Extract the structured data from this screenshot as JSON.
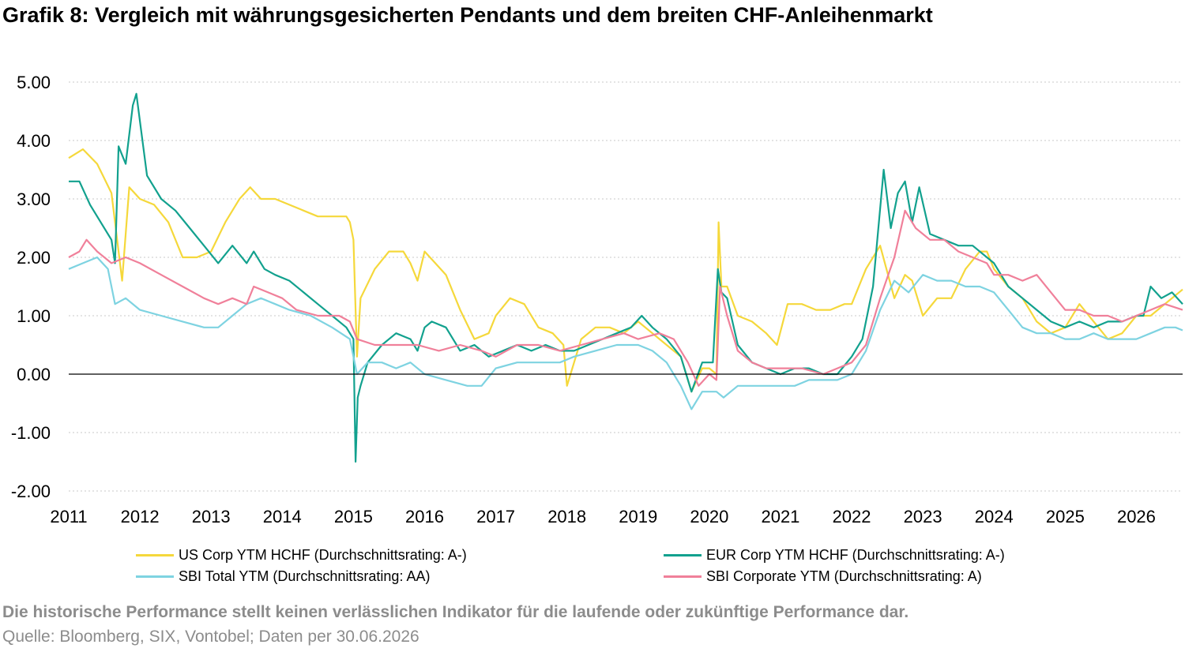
{
  "title": "Grafik 8: Vergleich mit währungsgesicherten Pendants und dem breiten CHF-Anleihenmarkt",
  "footer": {
    "disclaimer": "Die historische Performance stellt keinen verlässlichen Indikator für die laufende oder zukünftige Performance dar.",
    "source": "Quelle: Bloomberg, SIX, Vontobel; Daten per 30.06.2026"
  },
  "chart_data": {
    "type": "line",
    "title": "",
    "xlabel": "",
    "ylabel": "",
    "xlim": [
      2011.0,
      2026.65
    ],
    "ylim": [
      -2.0,
      5.0
    ],
    "x_ticks": [
      "2011",
      "2012",
      "2013",
      "2014",
      "2015",
      "2016",
      "2017",
      "2018",
      "2019",
      "2020",
      "2021",
      "2022",
      "2023",
      "2024",
      "2025",
      "2026"
    ],
    "y_ticks": [
      "5.00",
      "4.00",
      "3.00",
      "2.00",
      "1.00",
      "0.00",
      "-1.00",
      "-2.00"
    ],
    "grid": "horizontal dotted",
    "legend_position": "bottom",
    "series": [
      {
        "name": "US Corp YTM HCHF (Durchschnittsrating: A-)",
        "color": "#F5D83B",
        "x": [
          2011.0,
          2011.2,
          2011.4,
          2011.6,
          2011.75,
          2011.85,
          2012.0,
          2012.2,
          2012.4,
          2012.6,
          2012.8,
          2013.0,
          2013.2,
          2013.4,
          2013.55,
          2013.7,
          2013.9,
          2014.1,
          2014.3,
          2014.5,
          2014.7,
          2014.9,
          2014.95,
          2015.0,
          2015.05,
          2015.1,
          2015.3,
          2015.5,
          2015.7,
          2015.8,
          2015.9,
          2016.0,
          2016.15,
          2016.3,
          2016.5,
          2016.7,
          2016.9,
          2017.0,
          2017.2,
          2017.4,
          2017.6,
          2017.8,
          2017.95,
          2018.0,
          2018.2,
          2018.4,
          2018.6,
          2018.8,
          2019.0,
          2019.2,
          2019.4,
          2019.6,
          2019.75,
          2019.9,
          2020.0,
          2020.1,
          2020.13,
          2020.17,
          2020.25,
          2020.4,
          2020.6,
          2020.8,
          2020.95,
          2021.1,
          2021.3,
          2021.5,
          2021.7,
          2021.9,
          2022.0,
          2022.2,
          2022.4,
          2022.6,
          2022.75,
          2022.85,
          2023.0,
          2023.2,
          2023.4,
          2023.6,
          2023.8,
          2023.9,
          2024.0,
          2024.2,
          2024.4,
          2024.6,
          2024.8,
          2025.0,
          2025.2,
          2025.4,
          2025.6,
          2025.8,
          2026.0,
          2026.2,
          2026.4,
          2026.5,
          2026.65
        ],
        "values": [
          3.7,
          3.85,
          3.6,
          3.1,
          1.6,
          3.2,
          3.0,
          2.9,
          2.6,
          2.0,
          2.0,
          2.1,
          2.6,
          3.0,
          3.2,
          3.0,
          3.0,
          2.9,
          2.8,
          2.7,
          2.7,
          2.7,
          2.6,
          2.3,
          0.3,
          1.3,
          1.8,
          2.1,
          2.1,
          1.9,
          1.6,
          2.1,
          1.9,
          1.7,
          1.1,
          0.6,
          0.7,
          1.0,
          1.3,
          1.2,
          0.8,
          0.7,
          0.5,
          -0.2,
          0.6,
          0.8,
          0.8,
          0.7,
          0.9,
          0.7,
          0.5,
          0.3,
          -0.3,
          0.1,
          0.1,
          0.0,
          2.6,
          1.5,
          1.5,
          1.0,
          0.9,
          0.7,
          0.5,
          1.2,
          1.2,
          1.1,
          1.1,
          1.2,
          1.2,
          1.8,
          2.2,
          1.3,
          1.7,
          1.6,
          1.0,
          1.3,
          1.3,
          1.8,
          2.1,
          2.1,
          1.8,
          1.5,
          1.3,
          0.9,
          0.7,
          0.8,
          1.2,
          0.9,
          0.6,
          0.7,
          1.0,
          1.0,
          1.2,
          1.3,
          1.45
        ]
      },
      {
        "name": "EUR Corp YTM HCHF (Durchschnittsrating: A-)",
        "color": "#12A18E",
        "x": [
          2011.0,
          2011.15,
          2011.3,
          2011.45,
          2011.6,
          2011.65,
          2011.7,
          2011.8,
          2011.9,
          2011.95,
          2012.1,
          2012.3,
          2012.5,
          2012.7,
          2012.9,
          2013.1,
          2013.3,
          2013.5,
          2013.6,
          2013.75,
          2013.9,
          2014.1,
          2014.3,
          2014.5,
          2014.7,
          2014.9,
          2015.0,
          2015.03,
          2015.06,
          2015.1,
          2015.2,
          2015.4,
          2015.6,
          2015.8,
          2015.9,
          2016.0,
          2016.1,
          2016.3,
          2016.5,
          2016.7,
          2016.9,
          2017.1,
          2017.3,
          2017.5,
          2017.7,
          2017.9,
          2018.1,
          2018.3,
          2018.5,
          2018.7,
          2018.9,
          2019.05,
          2019.2,
          2019.4,
          2019.6,
          2019.75,
          2019.9,
          2020.05,
          2020.12,
          2020.17,
          2020.25,
          2020.4,
          2020.6,
          2020.8,
          2021.0,
          2021.2,
          2021.4,
          2021.6,
          2021.8,
          2022.0,
          2022.15,
          2022.3,
          2022.45,
          2022.55,
          2022.65,
          2022.75,
          2022.85,
          2022.95,
          2023.1,
          2023.3,
          2023.5,
          2023.7,
          2023.9,
          2024.0,
          2024.2,
          2024.4,
          2024.6,
          2024.8,
          2025.0,
          2025.2,
          2025.4,
          2025.6,
          2025.8,
          2026.0,
          2026.1,
          2026.2,
          2026.35,
          2026.5,
          2026.65
        ],
        "values": [
          3.3,
          3.3,
          2.9,
          2.6,
          2.3,
          1.9,
          3.9,
          3.6,
          4.6,
          4.8,
          3.4,
          3.0,
          2.8,
          2.5,
          2.2,
          1.9,
          2.2,
          1.9,
          2.1,
          1.8,
          1.7,
          1.6,
          1.4,
          1.2,
          1.0,
          0.8,
          0.6,
          -1.5,
          -0.4,
          -0.2,
          0.2,
          0.5,
          0.7,
          0.6,
          0.4,
          0.8,
          0.9,
          0.8,
          0.4,
          0.5,
          0.3,
          0.4,
          0.5,
          0.4,
          0.5,
          0.4,
          0.4,
          0.5,
          0.6,
          0.7,
          0.8,
          1.0,
          0.8,
          0.6,
          0.3,
          -0.3,
          0.2,
          0.2,
          1.8,
          1.4,
          1.3,
          0.5,
          0.2,
          0.1,
          0.0,
          0.1,
          0.1,
          0.0,
          0.0,
          0.3,
          0.6,
          1.5,
          3.5,
          2.5,
          3.1,
          3.3,
          2.6,
          3.2,
          2.4,
          2.3,
          2.2,
          2.2,
          2.0,
          1.9,
          1.5,
          1.3,
          1.1,
          0.9,
          0.8,
          0.9,
          0.8,
          0.9,
          0.9,
          1.0,
          1.0,
          1.5,
          1.3,
          1.4,
          1.2
        ]
      },
      {
        "name": "SBI Total YTM (Durchschnittsrating: AA)",
        "color": "#7ED3E1",
        "x": [
          2011.0,
          2011.2,
          2011.4,
          2011.55,
          2011.65,
          2011.8,
          2012.0,
          2012.3,
          2012.6,
          2012.9,
          2013.1,
          2013.3,
          2013.5,
          2013.7,
          2013.9,
          2014.1,
          2014.4,
          2014.7,
          2014.95,
          2015.05,
          2015.2,
          2015.4,
          2015.6,
          2015.8,
          2016.0,
          2016.3,
          2016.6,
          2016.8,
          2017.0,
          2017.3,
          2017.6,
          2017.9,
          2018.1,
          2018.4,
          2018.7,
          2019.0,
          2019.2,
          2019.4,
          2019.6,
          2019.75,
          2019.9,
          2020.1,
          2020.2,
          2020.4,
          2020.6,
          2020.8,
          2021.0,
          2021.2,
          2021.4,
          2021.6,
          2021.8,
          2022.0,
          2022.2,
          2022.4,
          2022.6,
          2022.8,
          2023.0,
          2023.2,
          2023.4,
          2023.6,
          2023.8,
          2024.0,
          2024.2,
          2024.4,
          2024.6,
          2024.8,
          2025.0,
          2025.2,
          2025.4,
          2025.6,
          2025.8,
          2026.0,
          2026.2,
          2026.4,
          2026.55,
          2026.65
        ],
        "values": [
          1.8,
          1.9,
          2.0,
          1.8,
          1.2,
          1.3,
          1.1,
          1.0,
          0.9,
          0.8,
          0.8,
          1.0,
          1.2,
          1.3,
          1.2,
          1.1,
          1.0,
          0.8,
          0.6,
          0.0,
          0.2,
          0.2,
          0.1,
          0.2,
          0.0,
          -0.1,
          -0.2,
          -0.2,
          0.1,
          0.2,
          0.2,
          0.2,
          0.3,
          0.4,
          0.5,
          0.5,
          0.4,
          0.2,
          -0.2,
          -0.6,
          -0.3,
          -0.3,
          -0.4,
          -0.2,
          -0.2,
          -0.2,
          -0.2,
          -0.2,
          -0.1,
          -0.1,
          -0.1,
          0.0,
          0.4,
          1.1,
          1.6,
          1.4,
          1.7,
          1.6,
          1.6,
          1.5,
          1.5,
          1.4,
          1.1,
          0.8,
          0.7,
          0.7,
          0.6,
          0.6,
          0.7,
          0.6,
          0.6,
          0.6,
          0.7,
          0.8,
          0.8,
          0.75
        ]
      },
      {
        "name": "SBI Corporate YTM (Durchschnittsrating: A)",
        "color": "#F0809A",
        "x": [
          2011.0,
          2011.15,
          2011.25,
          2011.4,
          2011.6,
          2011.8,
          2012.0,
          2012.3,
          2012.6,
          2012.9,
          2013.1,
          2013.3,
          2013.5,
          2013.6,
          2013.8,
          2014.0,
          2014.2,
          2014.5,
          2014.8,
          2014.95,
          2015.05,
          2015.3,
          2015.6,
          2015.9,
          2016.2,
          2016.5,
          2016.8,
          2017.0,
          2017.3,
          2017.6,
          2017.9,
          2018.2,
          2018.5,
          2018.8,
          2019.0,
          2019.3,
          2019.5,
          2019.7,
          2019.85,
          2020.0,
          2020.1,
          2020.15,
          2020.25,
          2020.4,
          2020.6,
          2020.8,
          2021.0,
          2021.3,
          2021.6,
          2021.8,
          2022.0,
          2022.2,
          2022.4,
          2022.6,
          2022.75,
          2022.9,
          2023.1,
          2023.3,
          2023.5,
          2023.7,
          2023.9,
          2024.0,
          2024.2,
          2024.4,
          2024.6,
          2024.8,
          2025.0,
          2025.2,
          2025.4,
          2025.6,
          2025.8,
          2026.0,
          2026.2,
          2026.4,
          2026.65
        ],
        "values": [
          2.0,
          2.1,
          2.3,
          2.1,
          1.9,
          2.0,
          1.9,
          1.7,
          1.5,
          1.3,
          1.2,
          1.3,
          1.2,
          1.5,
          1.4,
          1.3,
          1.1,
          1.0,
          1.0,
          0.9,
          0.6,
          0.5,
          0.5,
          0.5,
          0.4,
          0.5,
          0.4,
          0.3,
          0.5,
          0.5,
          0.4,
          0.5,
          0.6,
          0.7,
          0.6,
          0.7,
          0.6,
          0.2,
          -0.2,
          0.0,
          -0.1,
          1.5,
          1.0,
          0.4,
          0.2,
          0.1,
          0.1,
          0.1,
          0.0,
          0.1,
          0.2,
          0.5,
          1.3,
          2.0,
          2.8,
          2.5,
          2.3,
          2.3,
          2.1,
          2.0,
          1.9,
          1.7,
          1.7,
          1.6,
          1.7,
          1.4,
          1.1,
          1.1,
          1.0,
          1.0,
          0.9,
          1.0,
          1.1,
          1.2,
          1.1
        ]
      }
    ]
  }
}
